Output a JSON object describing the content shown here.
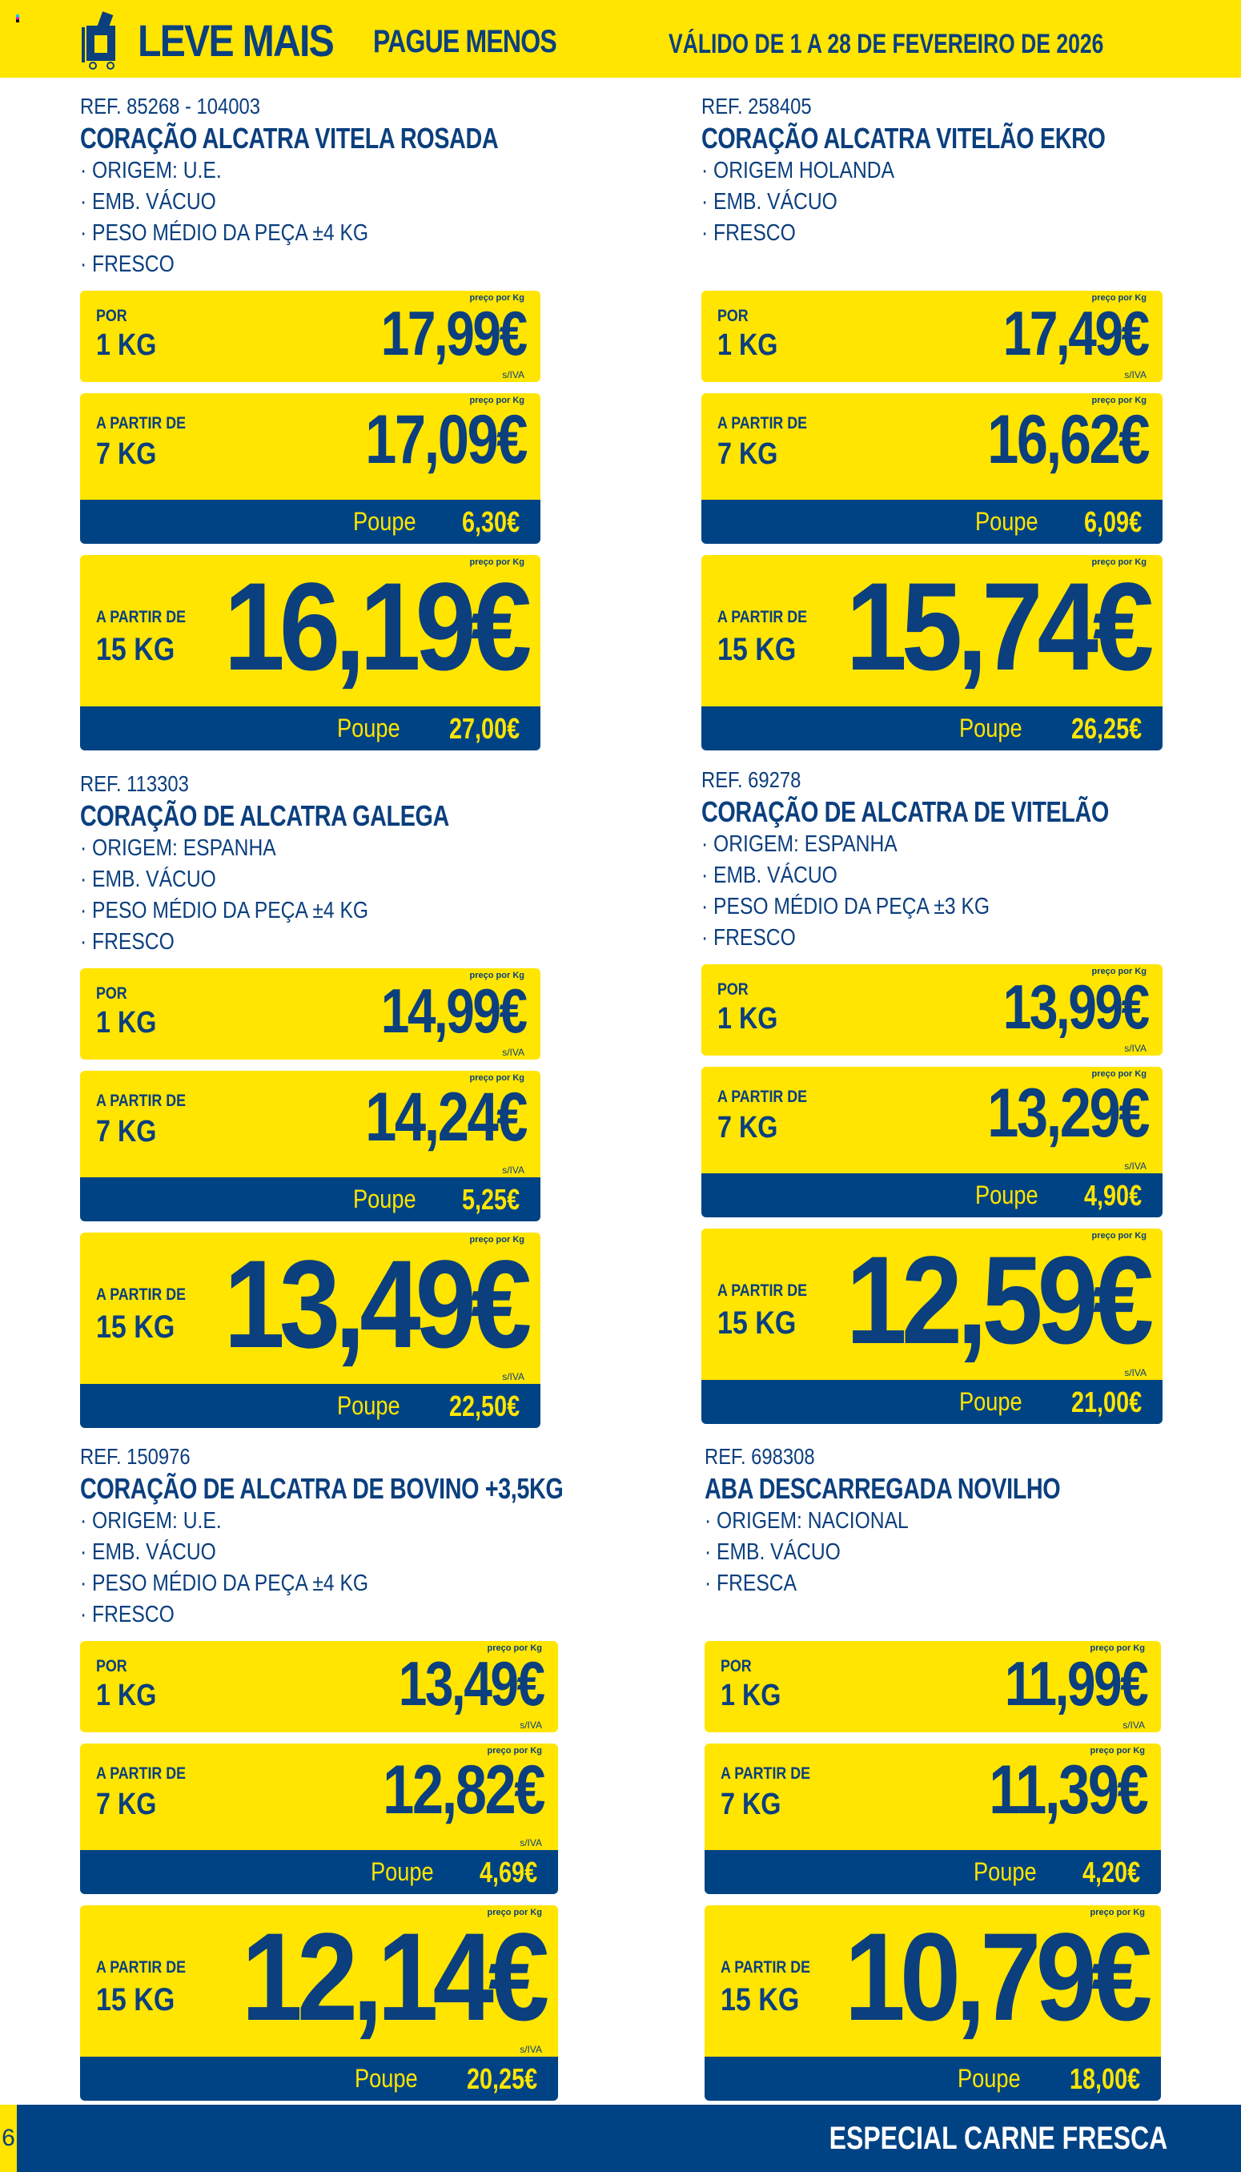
{
  "header": {
    "title": "LEVE MAIS",
    "subtitle": "PAGUE MENOS",
    "validity": "VÁLIDO DE 1 A 28 DE FEVEREIRO DE 2026",
    "logo_icon": "cart-percent-icon"
  },
  "labels": {
    "per_kg": "preço por Kg",
    "sem_iva": "s/IVA",
    "poupe": "Poupe"
  },
  "colors": {
    "yellow": "#ffe500",
    "blue": "#004384"
  },
  "products": [
    {
      "ref": "REF. 85268 - 104003",
      "title": "CORAÇÃO ALCATRA VITELA ROSADA",
      "bullets": [
        "· ORIGEM: U.E.",
        "· EMB. VÁCUO",
        "· PESO MÉDIO DA PEÇA ±4 KG",
        "· FRESCO"
      ],
      "tiers": [
        {
          "pre": "POR",
          "qty": "1 KG",
          "price": "17,99€",
          "siva": true
        },
        {
          "pre": "A PARTIR DE",
          "qty": "7 KG",
          "price": "17,09€",
          "siva": false,
          "save": "6,30€"
        },
        {
          "pre": "A PARTIR DE",
          "qty": "15 KG",
          "price": "16,19€",
          "siva": false,
          "save": "27,00€"
        }
      ]
    },
    {
      "ref": "REF. 258405",
      "title": "CORAÇÃO ALCATRA VITELÃO EKRO",
      "bullets": [
        "· ORIGEM HOLANDA",
        "· EMB. VÁCUO",
        "· FRESCO"
      ],
      "tiers": [
        {
          "pre": "POR",
          "qty": "1 KG",
          "price": "17,49€",
          "siva": true
        },
        {
          "pre": "A PARTIR DE",
          "qty": "7 KG",
          "price": "16,62€",
          "siva": false,
          "save": "6,09€"
        },
        {
          "pre": "A PARTIR DE",
          "qty": "15 KG",
          "price": "15,74€",
          "siva": false,
          "save": "26,25€"
        }
      ]
    },
    {
      "ref": "REF. 113303",
      "title": "CORAÇÃO DE ALCATRA GALEGA",
      "bullets": [
        "· ORIGEM: ESPANHA",
        "· EMB. VÁCUO",
        "· PESO MÉDIO DA PEÇA ±4 KG",
        "· FRESCO"
      ],
      "tiers": [
        {
          "pre": "POR",
          "qty": "1 KG",
          "price": "14,99€",
          "siva": true
        },
        {
          "pre": "A PARTIR DE",
          "qty": "7 KG",
          "price": "14,24€",
          "siva": true,
          "save": "5,25€"
        },
        {
          "pre": "A PARTIR DE",
          "qty": "15 KG",
          "price": "13,49€",
          "siva": true,
          "save": "22,50€"
        }
      ]
    },
    {
      "ref": "REF. 69278",
      "title": "CORAÇÃO DE ALCATRA DE VITELÃO",
      "bullets": [
        "· ORIGEM: ESPANHA",
        "· EMB. VÁCUO",
        "· PESO MÉDIO DA PEÇA ±3 KG",
        "· FRESCO"
      ],
      "tiers": [
        {
          "pre": "POR",
          "qty": "1 KG",
          "price": "13,99€",
          "siva": true
        },
        {
          "pre": "A PARTIR DE",
          "qty": "7 KG",
          "price": "13,29€",
          "siva": true,
          "save": "4,90€"
        },
        {
          "pre": "A PARTIR DE",
          "qty": "15 KG",
          "price": "12,59€",
          "siva": true,
          "save": "21,00€"
        }
      ]
    },
    {
      "ref": "REF. 150976",
      "title": "CORAÇÃO DE ALCATRA DE BOVINO +3,5KG",
      "bullets": [
        "· ORIGEM: U.E.",
        "· EMB. VÁCUO",
        "· PESO MÉDIO DA PEÇA ±4 KG",
        "· FRESCO"
      ],
      "tiers": [
        {
          "pre": "POR",
          "qty": "1 KG",
          "price": "13,49€",
          "siva": true
        },
        {
          "pre": "A PARTIR DE",
          "qty": "7 KG",
          "price": "12,82€",
          "siva": true,
          "save": "4,69€"
        },
        {
          "pre": "A PARTIR DE",
          "qty": "15 KG",
          "price": "12,14€",
          "siva": true,
          "save": "20,25€"
        }
      ]
    },
    {
      "ref": "REF. 698308",
      "title": "ABA DESCARREGADA NOVILHO",
      "bullets": [
        "· ORIGEM: NACIONAL",
        "· EMB. VÁCUO",
        "· FRESCA"
      ],
      "tiers": [
        {
          "pre": "POR",
          "qty": "1 KG",
          "price": "11,99€",
          "siva": true
        },
        {
          "pre": "A PARTIR DE",
          "qty": "7 KG",
          "price": "11,39€",
          "siva": false,
          "save": "4,20€"
        },
        {
          "pre": "A PARTIR DE",
          "qty": "15 KG",
          "price": "10,79€",
          "siva": false,
          "save": "18,00€"
        }
      ]
    }
  ],
  "footer": {
    "page": "6",
    "section": "ESPECIAL CARNE FRESCA"
  }
}
